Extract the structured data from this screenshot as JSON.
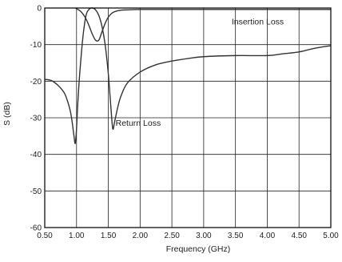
{
  "chart_data": {
    "type": "line",
    "title": "",
    "xlabel": "Frequency (GHz)",
    "ylabel": "S (dB)",
    "xlim": [
      0.5,
      5.0
    ],
    "ylim": [
      -60,
      0
    ],
    "x_ticks": [
      0.5,
      1.0,
      1.5,
      2.0,
      2.5,
      3.0,
      3.5,
      4.0,
      4.5,
      5.0
    ],
    "x_tick_labels": [
      "0.50",
      "1.00",
      "1.50",
      "2.00",
      "2.50",
      "3.00",
      "3.50",
      "4.00",
      "4.50",
      "5.00"
    ],
    "y_ticks": [
      0,
      -10,
      -20,
      -30,
      -40,
      -50,
      -60
    ],
    "y_tick_labels": [
      "0",
      "-10",
      "-20",
      "-30",
      "-40",
      "-50",
      "-60"
    ],
    "grid": true,
    "legend": "none",
    "line_color": "#333333",
    "grid_color": "#222222",
    "annotations": [
      {
        "text": "Insertion Loss",
        "x": 3.85,
        "y": -3.6
      },
      {
        "text": "Return Loss",
        "x": 1.97,
        "y": -31.3
      }
    ],
    "series": [
      {
        "name": "Insertion Loss",
        "x": [
          0.98,
          1.05,
          1.1,
          1.15,
          1.2,
          1.25,
          1.3,
          1.35,
          1.4,
          1.45,
          1.5,
          1.55,
          1.6,
          1.7,
          1.8,
          2.0,
          2.5,
          3.0,
          3.5,
          4.0,
          4.5,
          5.0
        ],
        "y": [
          0.0,
          -0.7,
          -1.6,
          -3.0,
          -5.0,
          -7.2,
          -8.8,
          -8.8,
          -6.5,
          -4.2,
          -2.5,
          -1.5,
          -1.0,
          -0.6,
          -0.5,
          -0.4,
          -0.4,
          -0.4,
          -0.4,
          -0.4,
          -0.4,
          -0.4
        ]
      },
      {
        "name": "Return Loss",
        "x": [
          0.5,
          0.6,
          0.7,
          0.8,
          0.85,
          0.9,
          0.93,
          0.96,
          0.98,
          1.0,
          1.02,
          1.05,
          1.1,
          1.15,
          1.2,
          1.25,
          1.3,
          1.35,
          1.4,
          1.45,
          1.5,
          1.54,
          1.57,
          1.6,
          1.65,
          1.7,
          1.8,
          2.0,
          2.25,
          2.5,
          2.75,
          3.0,
          3.5,
          4.0,
          4.25,
          4.5,
          4.75,
          5.0
        ],
        "y": [
          -19.5,
          -19.8,
          -21,
          -23,
          -25,
          -28,
          -31,
          -35,
          -37,
          -33,
          -26,
          -18,
          -8,
          -2,
          -0.3,
          0,
          -0.5,
          -2,
          -5,
          -10,
          -18,
          -27,
          -33,
          -31,
          -27,
          -24,
          -20.5,
          -17.5,
          -15.5,
          -14.5,
          -13.8,
          -13.3,
          -13,
          -13,
          -12.5,
          -12,
          -11,
          -10.3
        ]
      }
    ]
  }
}
